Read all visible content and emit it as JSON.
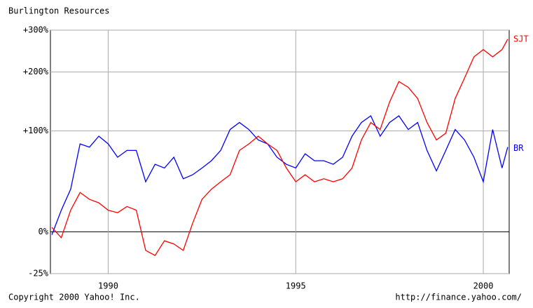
{
  "chart_data": {
    "type": "line",
    "title": "Burlington Resources",
    "footer_left": "Copyright 2000 Yahoo! Inc.",
    "footer_right": "http://finance.yahoo.com/",
    "x": [
      1988.5,
      1988.75,
      1989,
      1989.25,
      1989.5,
      1989.75,
      1990,
      1990.25,
      1990.5,
      1990.75,
      1991,
      1991.25,
      1991.5,
      1991.75,
      1992,
      1992.25,
      1992.5,
      1992.75,
      1993,
      1993.25,
      1993.5,
      1993.75,
      1994,
      1994.25,
      1994.5,
      1994.75,
      1995,
      1995.25,
      1995.5,
      1995.75,
      1996,
      1996.25,
      1996.5,
      1996.75,
      1997,
      1997.25,
      1997.5,
      1997.75,
      1998,
      1998.25,
      1998.5,
      1998.75,
      1999,
      1999.25,
      1999.5,
      1999.75,
      2000,
      2000.25,
      2000.5,
      2000.65
    ],
    "series": [
      {
        "name": "BR",
        "color": "#0000ff",
        "values": [
          -2,
          16,
          34,
          83,
          79,
          93,
          83,
          67,
          75,
          75,
          41,
          59,
          55,
          67,
          44,
          48,
          55,
          63,
          75,
          102,
          112,
          102,
          88,
          83,
          67,
          59,
          55,
          71,
          63,
          63,
          59,
          67,
          93,
          112,
          122,
          93,
          112,
          122,
          102,
          112,
          75,
          52,
          75,
          102,
          88,
          67,
          41,
          102,
          55,
          79
        ]
      },
      {
        "name": "SJT",
        "color": "#ff0000",
        "values": [
          3,
          -4,
          16,
          31,
          25,
          22,
          16,
          14,
          19,
          16,
          -12,
          -15,
          -6,
          -8,
          -12,
          6,
          25,
          34,
          41,
          48,
          75,
          83,
          93,
          83,
          75,
          55,
          41,
          48,
          41,
          44,
          41,
          44,
          55,
          88,
          112,
          102,
          144,
          181,
          170,
          150,
          112,
          88,
          97,
          150,
          188,
          233,
          250,
          233,
          250,
          276
        ]
      }
    ],
    "xlim": [
      1988.46,
      2000.69
    ],
    "xticks": [
      1990,
      1995,
      2000
    ],
    "ylim": [
      -25,
      300
    ],
    "yticks": [
      {
        "value": -25,
        "label": "-25%"
      },
      {
        "value": 0,
        "label": "0%"
      },
      {
        "value": 100,
        "label": "+100%"
      },
      {
        "value": 200,
        "label": "+200%"
      },
      {
        "value": 300,
        "label": "+300%"
      }
    ],
    "yscale": "log",
    "grid": true
  }
}
